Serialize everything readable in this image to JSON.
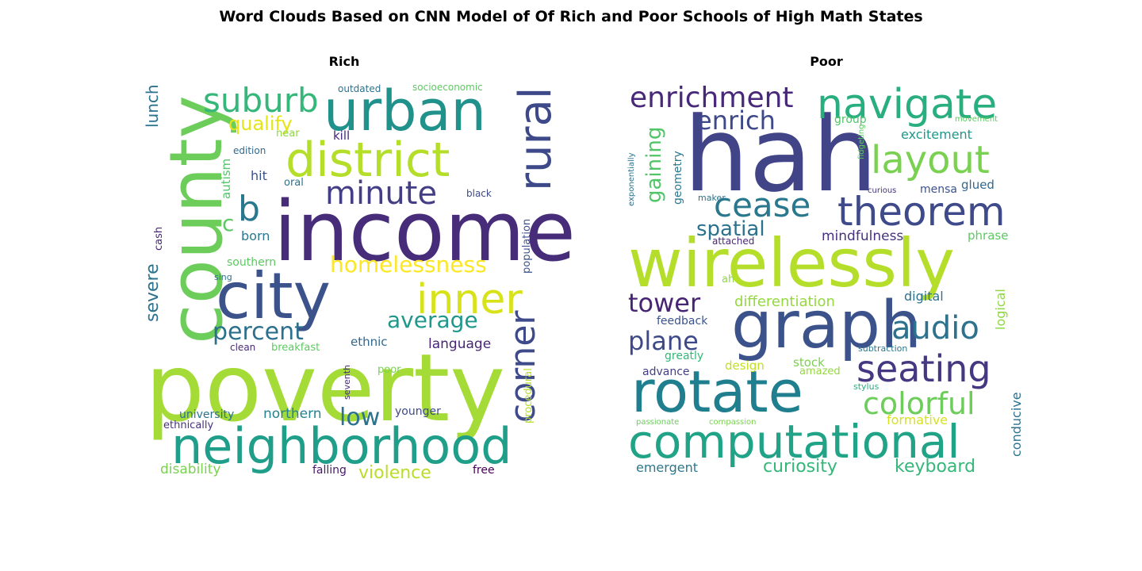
{
  "figure_title": "Word Clouds Based on CNN Model of Of Rich and Poor Schools of High Math States",
  "chart_data": [
    {
      "type": "wordcloud",
      "title": "Rich",
      "words": [
        {
          "text": "poverty",
          "color": "#a5db36"
        },
        {
          "text": "income",
          "color": "#472c7a"
        },
        {
          "text": "county",
          "color": "#6ccd5a"
        },
        {
          "text": "city",
          "color": "#3b528b"
        },
        {
          "text": "urban",
          "color": "#21918c"
        },
        {
          "text": "neighborhood",
          "color": "#1f9e89"
        },
        {
          "text": "district",
          "color": "#b5de2b"
        },
        {
          "text": "rural",
          "color": "#3e4989"
        },
        {
          "text": "inner",
          "color": "#d8e219"
        },
        {
          "text": "corner",
          "color": "#3e4a89"
        },
        {
          "text": "suburb",
          "color": "#35b779"
        },
        {
          "text": "minute",
          "color": "#433e85"
        },
        {
          "text": "b",
          "color": "#2a788e"
        },
        {
          "text": "homelessness",
          "color": "#fde725"
        },
        {
          "text": "percent",
          "color": "#2d708e"
        },
        {
          "text": "average",
          "color": "#1f988b"
        },
        {
          "text": "low",
          "color": "#2c728e"
        },
        {
          "text": "qualify",
          "color": "#e5e419"
        },
        {
          "text": "severe",
          "color": "#2c728e"
        },
        {
          "text": "violence",
          "color": "#b8de29"
        },
        {
          "text": "c",
          "color": "#5ec962"
        },
        {
          "text": "lunch",
          "color": "#2c728e"
        },
        {
          "text": "language",
          "color": "#482475"
        },
        {
          "text": "northern",
          "color": "#26828e"
        },
        {
          "text": "disability",
          "color": "#7ad151"
        },
        {
          "text": "autism",
          "color": "#52c569"
        },
        {
          "text": "born",
          "color": "#2a788e"
        },
        {
          "text": "hit",
          "color": "#3b528b"
        },
        {
          "text": "kill",
          "color": "#482878"
        },
        {
          "text": "ethnic",
          "color": "#31688e"
        },
        {
          "text": "younger",
          "color": "#3e4989"
        },
        {
          "text": "university",
          "color": "#2c728e"
        },
        {
          "text": "falling",
          "color": "#48186a"
        },
        {
          "text": "free",
          "color": "#440154"
        },
        {
          "text": "southern",
          "color": "#5ec962"
        },
        {
          "text": "breakfast",
          "color": "#5ec962"
        },
        {
          "text": "procedural",
          "color": "#b5de2b"
        },
        {
          "text": "population",
          "color": "#3b528b"
        },
        {
          "text": "cash",
          "color": "#482878"
        },
        {
          "text": "oral",
          "color": "#2c728e"
        },
        {
          "text": "near",
          "color": "#8fd744"
        },
        {
          "text": "ethnically",
          "color": "#46327e"
        },
        {
          "text": "edition",
          "color": "#31688e"
        },
        {
          "text": "outdated",
          "color": "#2c728e"
        },
        {
          "text": "socioeconomic",
          "color": "#5ec962"
        },
        {
          "text": "black",
          "color": "#3e4989"
        },
        {
          "text": "seventh",
          "color": "#482878"
        },
        {
          "text": "clean",
          "color": "#482878"
        },
        {
          "text": "poor",
          "color": "#7ad151"
        },
        {
          "text": "sing",
          "color": "#2c728e"
        }
      ]
    },
    {
      "type": "wordcloud",
      "title": "Poor",
      "words": [
        {
          "text": "hah",
          "color": "#414487"
        },
        {
          "text": "wirelessly",
          "color": "#b5de2b"
        },
        {
          "text": "graph",
          "color": "#3b528b"
        },
        {
          "text": "rotate",
          "color": "#1f7f8e"
        },
        {
          "text": "computational",
          "color": "#20a386"
        },
        {
          "text": "navigate",
          "color": "#29af7f"
        },
        {
          "text": "theorem",
          "color": "#3e4a89"
        },
        {
          "text": "layout",
          "color": "#7ad151"
        },
        {
          "text": "enrichment",
          "color": "#482878"
        },
        {
          "text": "seating",
          "color": "#453781"
        },
        {
          "text": "cease",
          "color": "#2a788e"
        },
        {
          "text": "audio",
          "color": "#2c728e"
        },
        {
          "text": "colorful",
          "color": "#6ccd5a"
        },
        {
          "text": "enrich",
          "color": "#3e4989"
        },
        {
          "text": "tower",
          "color": "#482475"
        },
        {
          "text": "plane",
          "color": "#3e4989"
        },
        {
          "text": "gaining",
          "color": "#52c569"
        },
        {
          "text": "spatial",
          "color": "#2c728e"
        },
        {
          "text": "curiosity",
          "color": "#35b779"
        },
        {
          "text": "keyboard",
          "color": "#35b779"
        },
        {
          "text": "differentiation",
          "color": "#95d840"
        },
        {
          "text": "mindfulness",
          "color": "#46327e"
        },
        {
          "text": "excitement",
          "color": "#1f988b"
        },
        {
          "text": "digital",
          "color": "#2c728e"
        },
        {
          "text": "emergent",
          "color": "#2a788e"
        },
        {
          "text": "formative",
          "color": "#d8e219"
        },
        {
          "text": "conducive",
          "color": "#2c728e"
        },
        {
          "text": "logical",
          "color": "#8fd744"
        },
        {
          "text": "phrase",
          "color": "#5ec962"
        },
        {
          "text": "glued",
          "color": "#31688e"
        },
        {
          "text": "mensa",
          "color": "#3b528b"
        },
        {
          "text": "stock",
          "color": "#7ad151"
        },
        {
          "text": "design",
          "color": "#c2df23"
        },
        {
          "text": "advance",
          "color": "#433e85"
        },
        {
          "text": "feedback",
          "color": "#3b528b"
        },
        {
          "text": "greatly",
          "color": "#35b779"
        },
        {
          "text": "geometry",
          "color": "#2a788e"
        },
        {
          "text": "group",
          "color": "#52c569"
        },
        {
          "text": "amazed",
          "color": "#95d840"
        },
        {
          "text": "ah",
          "color": "#8fd744"
        },
        {
          "text": "attached",
          "color": "#482878"
        },
        {
          "text": "maker",
          "color": "#2c728e"
        },
        {
          "text": "subtraction",
          "color": "#2a788e"
        },
        {
          "text": "stylus",
          "color": "#29af7f"
        },
        {
          "text": "movement",
          "color": "#5ec962"
        },
        {
          "text": "fidgeting",
          "color": "#5ec962"
        },
        {
          "text": "curious",
          "color": "#46327e"
        },
        {
          "text": "exponentially",
          "color": "#2c728e"
        },
        {
          "text": "passionate",
          "color": "#6ccd5a"
        },
        {
          "text": "compassion",
          "color": "#7ad151"
        }
      ]
    }
  ]
}
